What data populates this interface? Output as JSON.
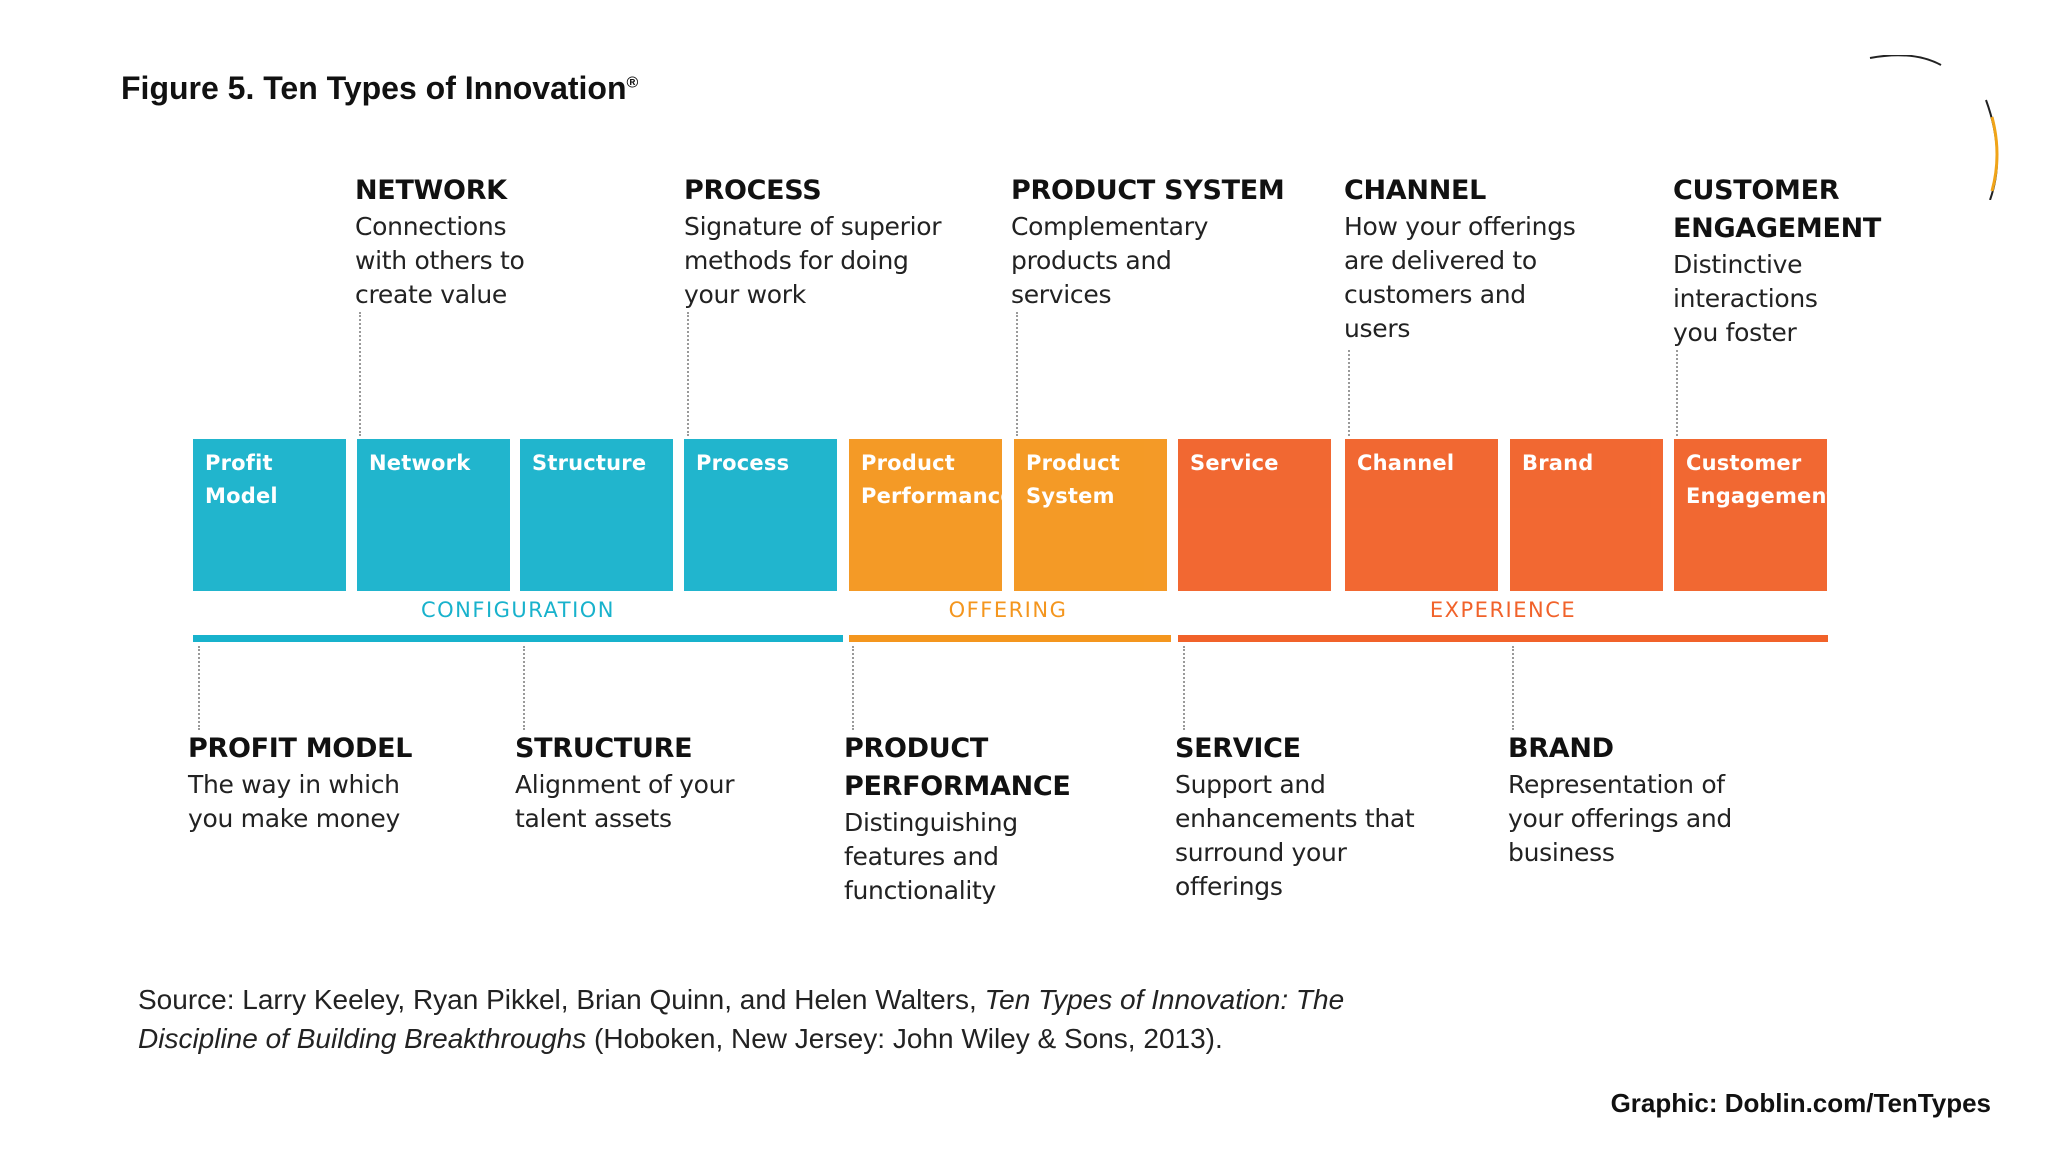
{
  "title": {
    "text": "Figure 5. Ten Types of Innovation",
    "mark": "®"
  },
  "tiles": [
    {
      "label": "Profit Model",
      "color": "#18b2cc"
    },
    {
      "label": "Network",
      "color": "#18b2cc"
    },
    {
      "label": "Structure",
      "color": "#18b2cc"
    },
    {
      "label": "Process",
      "color": "#18b2cc"
    },
    {
      "label": "Product Performance",
      "color": "#f4961e"
    },
    {
      "label": "Product System",
      "color": "#f4961e"
    },
    {
      "label": "Service",
      "color": "#f1622a"
    },
    {
      "label": "Channel",
      "color": "#f1622a"
    },
    {
      "label": "Brand",
      "color": "#f1622a"
    },
    {
      "label": "Customer Engagement",
      "color": "#f1622a"
    }
  ],
  "groups": [
    {
      "label": "CONFIGURATION",
      "color": "#18b2cc"
    },
    {
      "label": "OFFERING",
      "color": "#f4961e"
    },
    {
      "label": "EXPERIENCE",
      "color": "#f1622a"
    }
  ],
  "top_callouts": [
    {
      "head": "NETWORK",
      "desc": "Connections with others to create value"
    },
    {
      "head": "PROCESS",
      "desc": "Signature of superior methods for doing your work"
    },
    {
      "head": "PRODUCT SYSTEM",
      "desc": "Complementary products and services"
    },
    {
      "head": "CHANNEL",
      "desc": "How your offerings are delivered to customers and users"
    },
    {
      "head": "CUSTOMER ENGAGEMENT",
      "desc": "Distinctive interactions you foster"
    }
  ],
  "bottom_callouts": [
    {
      "head": "PROFIT MODEL",
      "desc": "The way in which you make money"
    },
    {
      "head": "STRUCTURE",
      "desc": "Alignment of your talent assets"
    },
    {
      "head": "PRODUCT PERFORMANCE",
      "desc": "Distinguishing features and functionality"
    },
    {
      "head": "SERVICE",
      "desc": "Support and enhancements that surround your offerings"
    },
    {
      "head": "BRAND",
      "desc": "Representation of your offerings and business"
    }
  ],
  "source": {
    "prefix": "Source: Larry Keeley, Ryan Pikkel, Brian Quinn, and Helen Walters,",
    "book": "Ten Types of Innovation: The Discipline of Building Breakthroughs",
    "suffix": "(Hoboken, New Jersey: John Wiley & Sons, 2013)."
  },
  "credit": "Graphic: Doblin.com/TenTypes"
}
